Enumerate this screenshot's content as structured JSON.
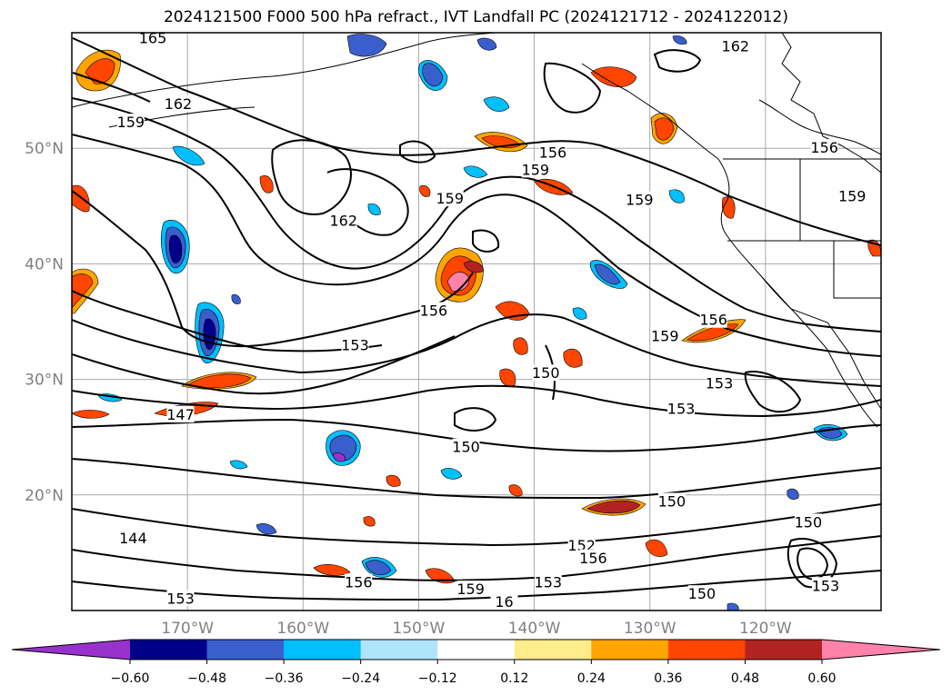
{
  "title": "2024121500 F000 500 hPa refract., IVT Landfall PC (2024121712 - 2024122012)",
  "map": {
    "lon_range": [
      -180,
      -110
    ],
    "lat_range": [
      10,
      60
    ],
    "lat_ticks": [
      {
        "value": 20,
        "label": "20°N"
      },
      {
        "value": 30,
        "label": "30°N"
      },
      {
        "value": 40,
        "label": "40°N"
      },
      {
        "value": 50,
        "label": "50°N"
      }
    ],
    "lon_ticks": [
      {
        "value": -170,
        "label": "170°W"
      },
      {
        "value": -160,
        "label": "160°W"
      },
      {
        "value": -150,
        "label": "150°W"
      },
      {
        "value": -140,
        "label": "140°W"
      },
      {
        "value": -130,
        "label": "130°W"
      },
      {
        "value": -120,
        "label": "120°W"
      }
    ],
    "contour_labels": [
      {
        "text": "165",
        "lon": -173.0,
        "lat": 59.5
      },
      {
        "text": "162",
        "lon": -170.8,
        "lat": 53.8
      },
      {
        "text": "159",
        "lon": -174.9,
        "lat": 52.2
      },
      {
        "text": "162",
        "lon": -122.6,
        "lat": 58.8
      },
      {
        "text": "156",
        "lon": -138.4,
        "lat": 49.6
      },
      {
        "text": "159",
        "lon": -139.9,
        "lat": 48.1
      },
      {
        "text": "156",
        "lon": -114.9,
        "lat": 50.0
      },
      {
        "text": "159",
        "lon": -130.9,
        "lat": 45.5
      },
      {
        "text": "159",
        "lon": -112.5,
        "lat": 45.8
      },
      {
        "text": "162",
        "lon": -156.5,
        "lat": 43.7
      },
      {
        "text": "159",
        "lon": -147.3,
        "lat": 45.6
      },
      {
        "text": "156",
        "lon": -148.7,
        "lat": 35.9
      },
      {
        "text": "153",
        "lon": -155.5,
        "lat": 32.9
      },
      {
        "text": "156",
        "lon": -124.5,
        "lat": 35.1
      },
      {
        "text": "159",
        "lon": -128.7,
        "lat": 33.7
      },
      {
        "text": "153",
        "lon": -124.0,
        "lat": 29.6
      },
      {
        "text": "153",
        "lon": -127.3,
        "lat": 27.4
      },
      {
        "text": "150",
        "lon": -139.0,
        "lat": 30.5
      },
      {
        "text": "147",
        "lon": -170.6,
        "lat": 26.9
      },
      {
        "text": "150",
        "lon": -145.9,
        "lat": 24.1
      },
      {
        "text": "150",
        "lon": -128.1,
        "lat": 19.4
      },
      {
        "text": "150",
        "lon": -116.3,
        "lat": 17.6
      },
      {
        "text": "144",
        "lon": -174.7,
        "lat": 16.2
      },
      {
        "text": "152",
        "lon": -135.9,
        "lat": 15.6
      },
      {
        "text": "156",
        "lon": -134.9,
        "lat": 14.5
      },
      {
        "text": "153",
        "lon": -138.8,
        "lat": 12.4
      },
      {
        "text": "156",
        "lon": -155.2,
        "lat": 12.4
      },
      {
        "text": "159",
        "lon": -145.5,
        "lat": 11.8
      },
      {
        "text": "16",
        "lon": -142.6,
        "lat": 10.7
      },
      {
        "text": "150",
        "lon": -125.5,
        "lat": 11.4
      },
      {
        "text": "153",
        "lon": -114.8,
        "lat": 12.1
      },
      {
        "text": "153",
        "lon": -170.6,
        "lat": 11.0
      }
    ]
  },
  "colorbar": {
    "ticks": [
      "−0.60",
      "−0.48",
      "−0.36",
      "−0.24",
      "−0.12",
      "0.12",
      "0.24",
      "0.36",
      "0.48",
      "0.60"
    ],
    "colors": [
      "#9932cc",
      "#00008b",
      "#3a5fcd",
      "#00bfff",
      "#afe4fb",
      "#ffffff",
      "#ffec8b",
      "#ffa500",
      "#ff4500",
      "#b22222",
      "#ff82ab"
    ]
  }
}
